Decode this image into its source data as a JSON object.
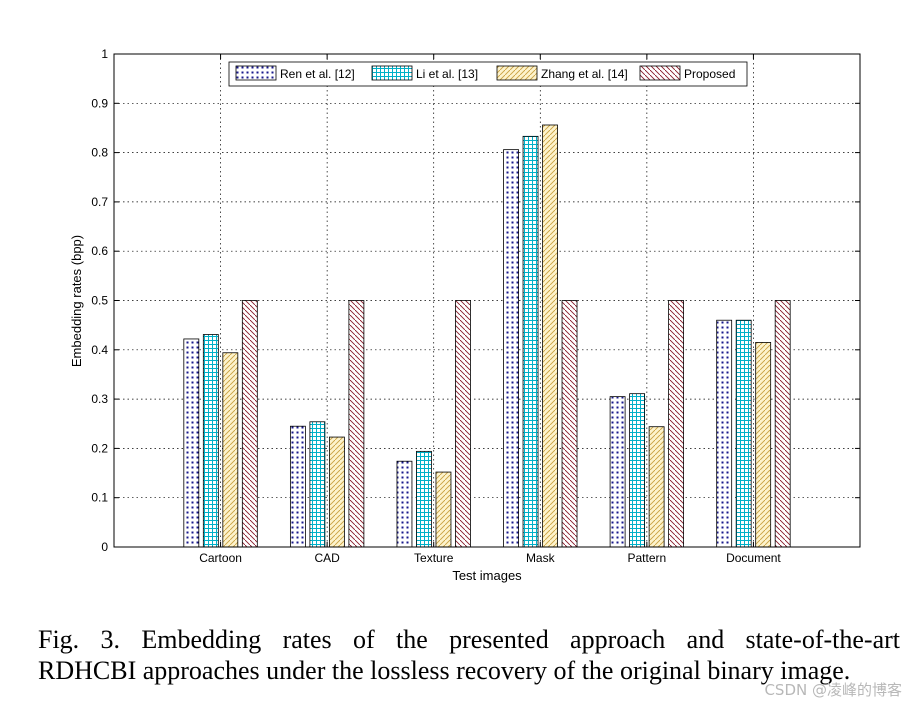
{
  "chart_data": {
    "type": "bar",
    "title": "",
    "xlabel": "Test images",
    "ylabel": "Embedding rates (bpp)",
    "ylim": [
      0,
      1
    ],
    "yticks": [
      0,
      0.1,
      0.2,
      0.3,
      0.4,
      0.5,
      0.6,
      0.7,
      0.8,
      0.9,
      1
    ],
    "ytick_labels": [
      "0",
      "0.1",
      "0.2",
      "0.3",
      "0.4",
      "0.5",
      "0.6",
      "0.7",
      "0.8",
      "0.9",
      "1"
    ],
    "grid": true,
    "legend_position": "top",
    "categories": [
      "Cartoon",
      "CAD",
      "Texture",
      "Mask",
      "Pattern",
      "Document"
    ],
    "series": [
      {
        "name": "Ren et al. [12]",
        "pattern": "dots",
        "color": "#1a1a8c",
        "fill": "#ffffff",
        "values": [
          0.422,
          0.245,
          0.174,
          0.806,
          0.305,
          0.46
        ]
      },
      {
        "name": "Li et al. [13]",
        "pattern": "grid",
        "color": "#00b0c8",
        "fill": "#ffffff",
        "values": [
          0.431,
          0.254,
          0.194,
          0.833,
          0.311,
          0.46
        ]
      },
      {
        "name": "Zhang et al. [14]",
        "pattern": "diag",
        "color": "#c8a040",
        "fill": "#fdf3cc",
        "values": [
          0.394,
          0.223,
          0.152,
          0.856,
          0.244,
          0.415
        ]
      },
      {
        "name": "Proposed",
        "pattern": "backdiag",
        "color": "#8a1a2a",
        "fill": "#ffffff",
        "values": [
          0.5,
          0.5,
          0.5,
          0.5,
          0.5,
          0.5
        ]
      }
    ]
  },
  "caption": {
    "line1": "Fig. 3.  Embedding rates of the presented approach and state-of-the-art",
    "line2": "RDHCBI approaches under the lossless recovery of the original binary image."
  },
  "watermark": "CSDN @凌峰的博客"
}
